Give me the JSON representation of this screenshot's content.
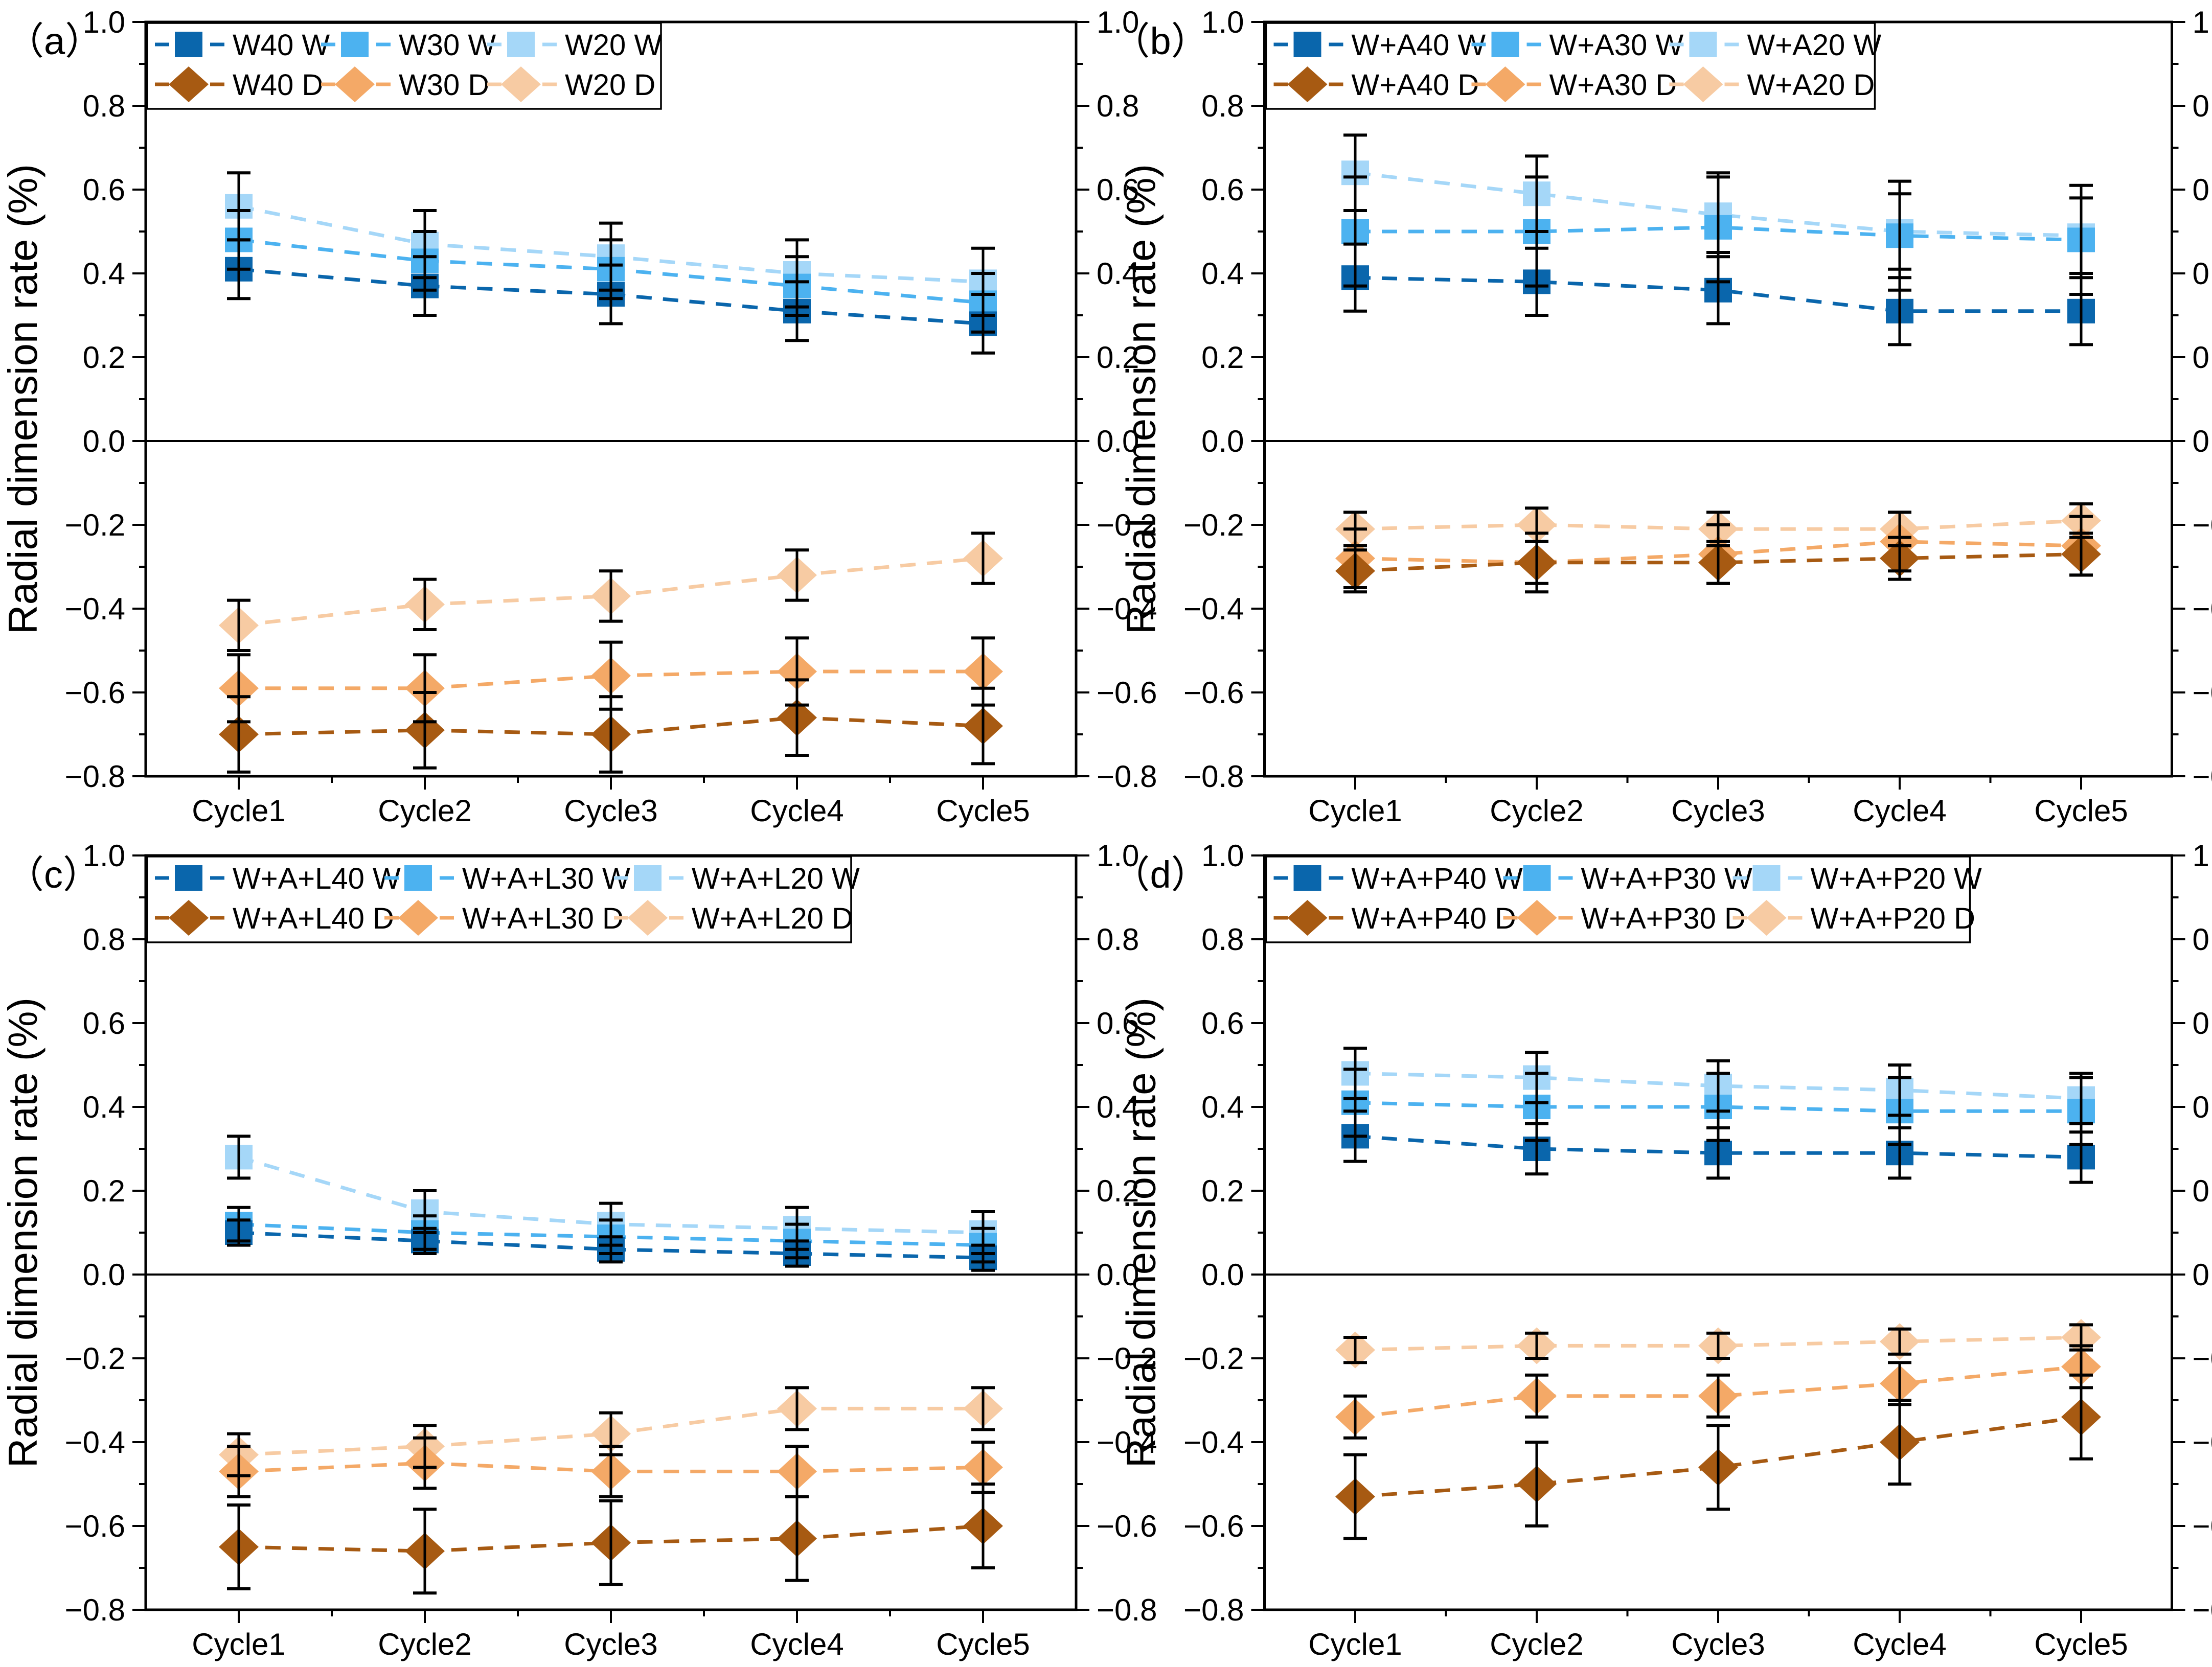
{
  "figure": {
    "ylabel": "Radial dimension rate (%)"
  },
  "colors": {
    "blue_dark": "#0A66AC",
    "blue_mid": "#4CB2F0",
    "blue_light": "#A5D7F8",
    "orange_dark": "#A75A12",
    "orange_mid": "#F4A967",
    "orange_light": "#F7CBA3",
    "axis": "#000000"
  },
  "axes": {
    "ylim": [
      -0.8,
      1.0
    ],
    "ytick_values": [
      1.0,
      0.8,
      0.6,
      0.4,
      0.2,
      0.0,
      -0.2,
      -0.4,
      -0.6,
      -0.8
    ],
    "ytick_labels": [
      "1.0",
      "0.8",
      "0.6",
      "0.4",
      "0.2",
      "0.0",
      "−0.2",
      "−0.4",
      "−0.6",
      "−0.8"
    ],
    "minor_ytick_step": 0.1,
    "grid": "off",
    "legend_position": "upper-left-inside"
  },
  "chart_data": [
    {
      "type": "line",
      "panel_label": "（a）",
      "categories": [
        "Cycle1",
        "Cycle2",
        "Cycle3",
        "Cycle4",
        "Cycle5"
      ],
      "ylabel": "Radial dimension rate (%)",
      "ylim": [
        -0.8,
        1.0
      ],
      "series": [
        {
          "name": "W40 W",
          "marker": "square",
          "color_key": "blue_dark",
          "values": [
            0.41,
            0.37,
            0.35,
            0.31,
            0.28
          ],
          "err": 0.07
        },
        {
          "name": "W30 W",
          "marker": "square",
          "color_key": "blue_mid",
          "values": [
            0.48,
            0.43,
            0.41,
            0.37,
            0.33
          ],
          "err": 0.07
        },
        {
          "name": "W20 W",
          "marker": "square",
          "color_key": "blue_light",
          "values": [
            0.56,
            0.47,
            0.44,
            0.4,
            0.38
          ],
          "err": 0.08
        },
        {
          "name": "W40 D",
          "marker": "diamond",
          "color_key": "orange_dark",
          "values": [
            -0.7,
            -0.69,
            -0.7,
            -0.66,
            -0.68
          ],
          "err": 0.09
        },
        {
          "name": "W30 D",
          "marker": "diamond",
          "color_key": "orange_mid",
          "values": [
            -0.59,
            -0.59,
            -0.56,
            -0.55,
            -0.55
          ],
          "err": 0.08
        },
        {
          "name": "W20 D",
          "marker": "diamond",
          "color_key": "orange_light",
          "values": [
            -0.44,
            -0.39,
            -0.37,
            -0.32,
            -0.28
          ],
          "err": 0.06
        }
      ]
    },
    {
      "type": "line",
      "panel_label": "（b）",
      "categories": [
        "Cycle1",
        "Cycle2",
        "Cycle3",
        "Cycle4",
        "Cycle5"
      ],
      "ylabel": "Radial dimension rate (%)",
      "ylim": [
        -0.8,
        1.0
      ],
      "series": [
        {
          "name": "W+A40 W",
          "marker": "square",
          "color_key": "blue_dark",
          "values": [
            0.39,
            0.38,
            0.36,
            0.31,
            0.31
          ],
          "err": 0.08
        },
        {
          "name": "W+A30 W",
          "marker": "square",
          "color_key": "blue_mid",
          "values": [
            0.5,
            0.5,
            0.51,
            0.49,
            0.48
          ],
          "err": 0.13
        },
        {
          "name": "W+A20 W",
          "marker": "square",
          "color_key": "blue_light",
          "values": [
            0.64,
            0.59,
            0.54,
            0.5,
            0.49
          ],
          "err": 0.09
        },
        {
          "name": "W+A40 D",
          "marker": "diamond",
          "color_key": "orange_dark",
          "values": [
            -0.31,
            -0.29,
            -0.29,
            -0.28,
            -0.27
          ],
          "err": 0.05
        },
        {
          "name": "W+A30 D",
          "marker": "diamond",
          "color_key": "orange_mid",
          "values": [
            -0.28,
            -0.29,
            -0.27,
            -0.24,
            -0.25
          ],
          "err": 0.07
        },
        {
          "name": "W+A20 D",
          "marker": "diamond",
          "color_key": "orange_light",
          "values": [
            -0.21,
            -0.2,
            -0.21,
            -0.21,
            -0.19
          ],
          "err": 0.04
        }
      ]
    },
    {
      "type": "line",
      "panel_label": "（c）",
      "categories": [
        "Cycle1",
        "Cycle2",
        "Cycle3",
        "Cycle4",
        "Cycle5"
      ],
      "ylabel": "Radial dimension rate (%)",
      "ylim": [
        -0.8,
        1.0
      ],
      "series": [
        {
          "name": "W+A+L40 W",
          "marker": "square",
          "color_key": "blue_dark",
          "values": [
            0.1,
            0.08,
            0.06,
            0.05,
            0.04
          ],
          "err": 0.03
        },
        {
          "name": "W+A+L30 W",
          "marker": "square",
          "color_key": "blue_mid",
          "values": [
            0.12,
            0.1,
            0.09,
            0.08,
            0.07
          ],
          "err": 0.04
        },
        {
          "name": "W+A+L20 W",
          "marker": "square",
          "color_key": "blue_light",
          "values": [
            0.28,
            0.15,
            0.12,
            0.11,
            0.1
          ],
          "err": 0.05
        },
        {
          "name": "W+A+L40 D",
          "marker": "diamond",
          "color_key": "orange_dark",
          "values": [
            -0.65,
            -0.66,
            -0.64,
            -0.63,
            -0.6
          ],
          "err": 0.1
        },
        {
          "name": "W+A+L30 D",
          "marker": "diamond",
          "color_key": "orange_mid",
          "values": [
            -0.47,
            -0.45,
            -0.47,
            -0.47,
            -0.46
          ],
          "err": 0.06
        },
        {
          "name": "W+A+L20 D",
          "marker": "diamond",
          "color_key": "orange_light",
          "values": [
            -0.43,
            -0.41,
            -0.38,
            -0.32,
            -0.32
          ],
          "err": 0.05
        }
      ]
    },
    {
      "type": "line",
      "panel_label": "（d）",
      "categories": [
        "Cycle1",
        "Cycle2",
        "Cycle3",
        "Cycle4",
        "Cycle5"
      ],
      "ylabel": "Radial dimension rate (%)",
      "ylim": [
        -0.8,
        1.0
      ],
      "series": [
        {
          "name": "W+A+P40 W",
          "marker": "square",
          "color_key": "blue_dark",
          "values": [
            0.33,
            0.3,
            0.29,
            0.29,
            0.28
          ],
          "err": 0.06
        },
        {
          "name": "W+A+P30 W",
          "marker": "square",
          "color_key": "blue_mid",
          "values": [
            0.41,
            0.4,
            0.4,
            0.39,
            0.39
          ],
          "err": 0.08
        },
        {
          "name": "W+A+P20 W",
          "marker": "square",
          "color_key": "blue_light",
          "values": [
            0.48,
            0.47,
            0.45,
            0.44,
            0.42
          ],
          "err": 0.06
        },
        {
          "name": "W+A+P40 D",
          "marker": "diamond",
          "color_key": "orange_dark",
          "values": [
            -0.53,
            -0.5,
            -0.46,
            -0.4,
            -0.34
          ],
          "err": 0.1
        },
        {
          "name": "W+A+P30 D",
          "marker": "diamond",
          "color_key": "orange_mid",
          "values": [
            -0.34,
            -0.29,
            -0.29,
            -0.26,
            -0.22
          ],
          "err": 0.05
        },
        {
          "name": "W+A+P20 D",
          "marker": "diamond",
          "color_key": "orange_light",
          "values": [
            -0.18,
            -0.17,
            -0.17,
            -0.16,
            -0.15
          ],
          "err": 0.03
        }
      ]
    }
  ]
}
